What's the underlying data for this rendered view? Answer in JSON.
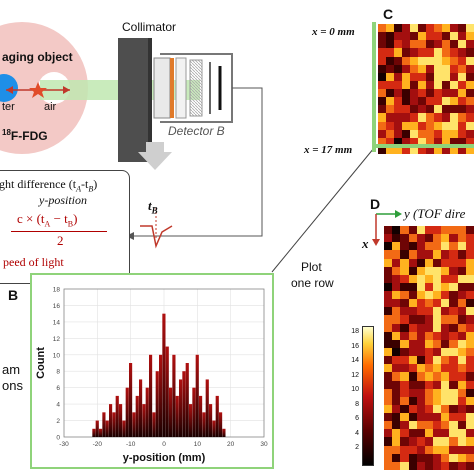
{
  "schematic": {
    "imaging_object": "aging object",
    "water": "ter",
    "air": "air",
    "tracer": "F-FDG",
    "tracer_sup": "18",
    "collimator": "Collimator",
    "detector_b": "Detector B",
    "t_b": "t",
    "t_b_sub": "B"
  },
  "formula": {
    "line1": "ght difference (t",
    "line1_sub_a": "A",
    "line1_mid": "-t",
    "line1_sub_b": "B",
    "line1_end": ")",
    "line2": "y-position",
    "numerator": "c × (t",
    "num_sub_a": "A",
    "num_mid": " − t",
    "num_sub_b": "B",
    "num_end": ")",
    "denominator": "2",
    "note": "peed of light"
  },
  "plot_row": {
    "line1": "Plot",
    "line2": "one row"
  },
  "left_text": {
    "line1": "am",
    "line2": "ons"
  },
  "panel_c": {
    "letter": "C",
    "x0": "x = 0 mm",
    "x17": "x = 17 mm"
  },
  "panel_d": {
    "letter": "D",
    "y_axis": "y (TOF dire",
    "x_axis": "x",
    "colorbar_ticks": [
      "18",
      "16",
      "14",
      "12",
      "10",
      "8",
      "6",
      "4",
      "2"
    ]
  },
  "chart_data": {
    "type": "bar",
    "panel_letter": "B",
    "xlabel": "y-position (mm)",
    "ylabel": "Count",
    "xlim": [
      -30,
      30
    ],
    "ylim": [
      0,
      18
    ],
    "xticks": [
      "-30",
      "-20",
      "-10",
      "0",
      "10",
      "20",
      "30"
    ],
    "yticks": [
      "0",
      "2",
      "4",
      "6",
      "8",
      "10",
      "12",
      "14",
      "16",
      "18"
    ],
    "bin_width": 1,
    "x": [
      -21,
      -20,
      -19,
      -18,
      -17,
      -16,
      -15,
      -14,
      -13,
      -12,
      -11,
      -10,
      -9,
      -8,
      -7,
      -6,
      -5,
      -4,
      -3,
      -2,
      -1,
      0,
      1,
      2,
      3,
      4,
      5,
      6,
      7,
      8,
      9,
      10,
      11,
      12,
      13,
      14,
      15,
      16,
      17,
      18
    ],
    "values": [
      1,
      2,
      1,
      3,
      2,
      4,
      3,
      5,
      4,
      2,
      6,
      9,
      3,
      5,
      7,
      4,
      6,
      10,
      3,
      8,
      10,
      15,
      11,
      6,
      10,
      5,
      7,
      8,
      9,
      4,
      6,
      10,
      5,
      3,
      7,
      4,
      2,
      5,
      3,
      1
    ]
  },
  "colors": {
    "green": "#8fd37a",
    "bar_top": "#b01010",
    "bar_bottom": "#1a0000",
    "formula_red": "#b00000"
  }
}
